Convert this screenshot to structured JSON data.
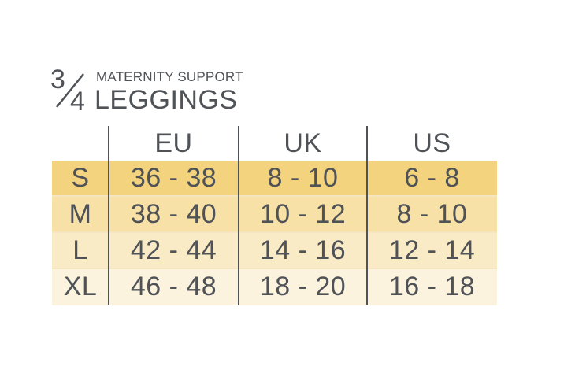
{
  "title": {
    "fraction_numerator": "3",
    "fraction_denominator": "4",
    "subtitle": "MATERNITY SUPPORT",
    "main": "LEGGINGS"
  },
  "table": {
    "headers": [
      "",
      "EU",
      "UK",
      "US"
    ],
    "rows": [
      {
        "size": "S",
        "eu": "36 - 38",
        "uk": "8 - 10",
        "us": "6 - 8",
        "color": "#f3d37d"
      },
      {
        "size": "M",
        "eu": "38 - 40",
        "uk": "10 - 12",
        "us": "8 - 10",
        "color": "#f8e1a6"
      },
      {
        "size": "L",
        "eu": "42 - 44",
        "uk": "14 - 16",
        "us": "12 - 14",
        "color": "#faebc7"
      },
      {
        "size": "XL",
        "eu": "46 - 48",
        "uk": "18 - 20",
        "us": "16 - 18",
        "color": "#fcf3df"
      }
    ],
    "line_color": "#4f5256",
    "text_color": "#4f5256"
  }
}
